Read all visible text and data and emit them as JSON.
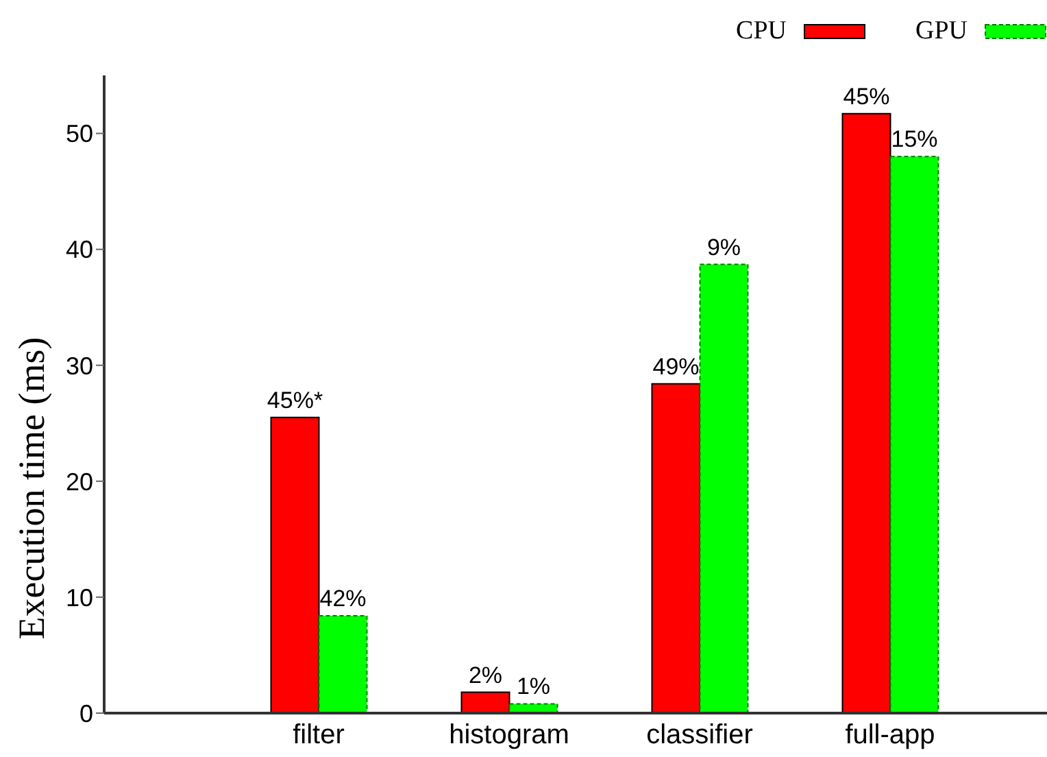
{
  "chart_data": {
    "type": "bar",
    "ylabel": "Execution time (ms)",
    "categories": [
      "filter",
      "histogram",
      "classifier",
      "full-app"
    ],
    "series": [
      {
        "name": "CPU",
        "color": "#ff0000",
        "values": [
          25.5,
          1.8,
          28.4,
          51.7
        ]
      },
      {
        "name": "GPU",
        "color": "#00ff00",
        "values": [
          8.4,
          0.8,
          38.7,
          48.0
        ],
        "line_style": "dashed"
      }
    ],
    "annotations": [
      {
        "text": "45%*",
        "x": "filter",
        "y": 25.5
      },
      {
        "text": "42%",
        "x": "filter",
        "y": 8.4
      },
      {
        "text": "2%",
        "x": "histogram",
        "y": 1.8
      },
      {
        "text": "1%",
        "x": "histogram",
        "y": 0.8
      },
      {
        "text": "49%",
        "x": "classifier",
        "y": 28.4
      },
      {
        "text": "9%",
        "x": "classifier",
        "y": 38.7
      },
      {
        "text": "45%",
        "x": "full-app",
        "y": 51.7
      },
      {
        "text": "15%",
        "x": "full-app",
        "y": 48.0
      }
    ],
    "ylim": [
      0,
      55
    ],
    "yticks": [
      0,
      10,
      20,
      30,
      40,
      50
    ],
    "grid": false,
    "legend": "top right"
  }
}
